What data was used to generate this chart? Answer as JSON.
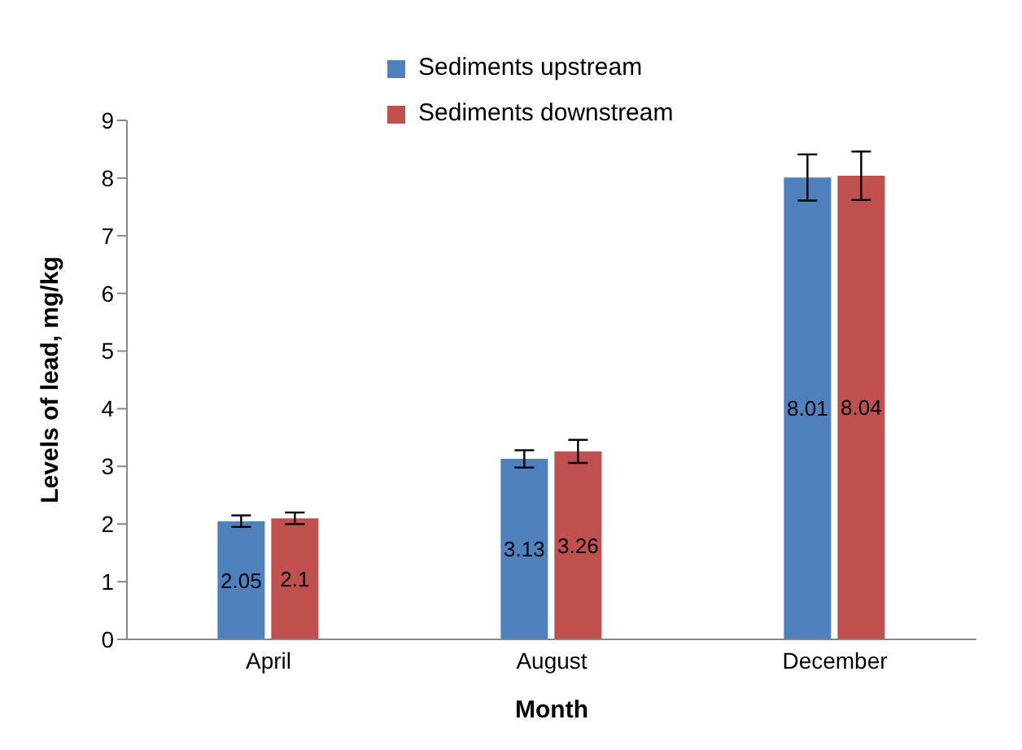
{
  "chart_data": {
    "type": "bar",
    "xlabel": "Month",
    "ylabel": "Levels of lead, mg/kg",
    "categories": [
      "April",
      "August",
      "December"
    ],
    "series": [
      {
        "name": "Sediments upstream",
        "color": "#4f81bd",
        "values": [
          2.05,
          3.13,
          8.01
        ],
        "errors": [
          0.1,
          0.15,
          0.4
        ]
      },
      {
        "name": "Sediments downstream",
        "color": "#c0504d",
        "values": [
          2.1,
          3.26,
          8.04
        ],
        "errors": [
          0.1,
          0.2,
          0.42
        ]
      }
    ],
    "ylim": [
      0,
      9
    ],
    "yticks": [
      0,
      1,
      2,
      3,
      4,
      5,
      6,
      7,
      8,
      9
    ],
    "grid": false,
    "legend": "top",
    "data_labels": true
  }
}
